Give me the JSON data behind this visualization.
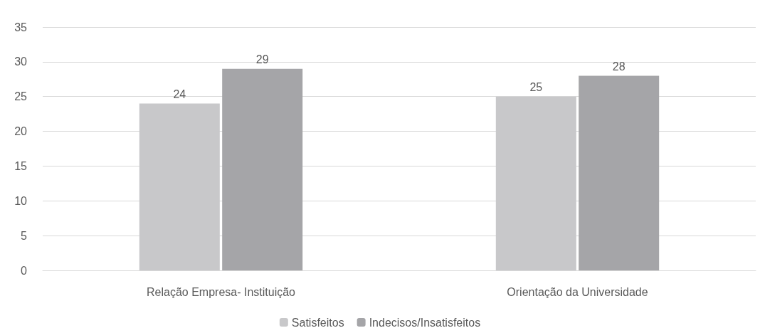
{
  "chart_data": {
    "type": "bar",
    "categories": [
      "Relação Empresa- Instituição",
      "Orientação da Universidade"
    ],
    "series": [
      {
        "name": "Satisfeitos",
        "color": "#c8c8ca",
        "values": [
          24,
          25
        ]
      },
      {
        "name": "Indecisos/Insatisfeitos",
        "color": "#a5a5a8",
        "values": [
          29,
          28
        ]
      }
    ],
    "ylim": [
      0,
      35
    ],
    "yticks": [
      0,
      5,
      10,
      15,
      20,
      25,
      30,
      35
    ],
    "grid": "y",
    "legend": "bottom",
    "data_labels": true
  }
}
